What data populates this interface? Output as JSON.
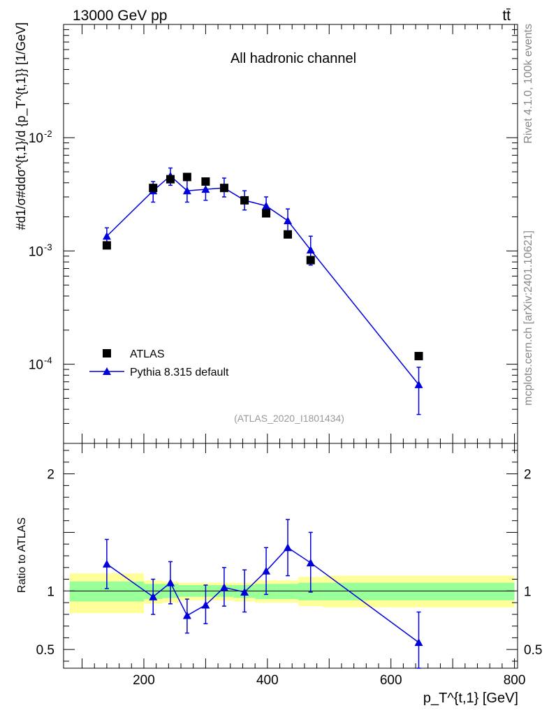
{
  "header": {
    "left": "13000 GeV pp",
    "right": "tt̄"
  },
  "side_labels": {
    "rivet": "Rivet 4.1.0,  100k events",
    "mcplots": "mcplots.cern.ch [arXiv:2401.10621]"
  },
  "colors": {
    "data": "#000000",
    "mc": "#0000dd",
    "band_inner": "#99ff99",
    "band_outer": "#ffff99",
    "watermark": "#999999",
    "side_label": "#888888"
  },
  "chart_data": [
    {
      "type": "scatter",
      "title": "All hadronic channel",
      "analysis_tag": "(ATLAS_2020_I1801434)",
      "ylabel": "#d1/σ#ddσ^{t,1}/d {p_T^{t,1}} [1/GeV]",
      "yscale": "log",
      "xlim": [
        70,
        805
      ],
      "ylim": [
        2e-05,
        0.1
      ],
      "y_ticks": [
        {
          "value": 0.01,
          "label": "10^-2"
        },
        {
          "value": 0.001,
          "label": "10^-3"
        },
        {
          "value": 0.0001,
          "label": "10^-4"
        }
      ],
      "legend": {
        "position": "bottom-left",
        "entries": [
          "ATLAS",
          "Pythia 8.315 default"
        ]
      },
      "series": [
        {
          "name": "ATLAS",
          "marker": "square",
          "x": [
            140,
            215,
            243,
            270,
            300,
            330,
            363,
            398,
            433,
            470,
            645
          ],
          "y": [
            0.00112,
            0.0036,
            0.0043,
            0.0045,
            0.0041,
            0.0036,
            0.0028,
            0.00215,
            0.0014,
            0.00083,
            0.000118
          ]
        },
        {
          "name": "Pythia 8.315 default",
          "marker": "triangle",
          "x": [
            140,
            215,
            243,
            270,
            300,
            330,
            363,
            398,
            433,
            470,
            645
          ],
          "y": [
            0.00135,
            0.0034,
            0.0046,
            0.0034,
            0.0035,
            0.0036,
            0.0028,
            0.0025,
            0.00185,
            0.00102,
            6.6e-05
          ],
          "y_low": [
            0.00115,
            0.0027,
            0.0038,
            0.0027,
            0.0028,
            0.003,
            0.0023,
            0.002,
            0.00145,
            0.00075,
            3.6e-05
          ],
          "y_high": [
            0.0016,
            0.0041,
            0.0054,
            0.0042,
            0.0043,
            0.0044,
            0.0034,
            0.003,
            0.00235,
            0.00135,
            9.4e-05
          ]
        }
      ]
    },
    {
      "type": "line",
      "ylabel": "Ratio to ATLAS",
      "xlabel": "p_T^{t,1} [GeV]",
      "xlim": [
        70,
        805
      ],
      "ylim": [
        0.34,
        2.26
      ],
      "x_ticks": [
        200,
        400,
        600,
        800
      ],
      "y_ticks": [
        0.5,
        1,
        2
      ],
      "reference_line": 1,
      "uncertainty_bands": [
        {
          "x_low": 80,
          "x_high": 200,
          "inner": [
            0.91,
            1.08
          ],
          "outer": [
            0.81,
            1.15
          ]
        },
        {
          "x_low": 200,
          "x_high": 230,
          "inner": [
            0.93,
            1.06
          ],
          "outer": [
            0.89,
            1.09
          ]
        },
        {
          "x_low": 230,
          "x_high": 256,
          "inner": [
            0.94,
            1.06
          ],
          "outer": [
            0.9,
            1.08
          ]
        },
        {
          "x_low": 256,
          "x_high": 285,
          "inner": [
            0.95,
            1.05
          ],
          "outer": [
            0.92,
            1.07
          ]
        },
        {
          "x_low": 285,
          "x_high": 315,
          "inner": [
            0.95,
            1.05
          ],
          "outer": [
            0.92,
            1.07
          ]
        },
        {
          "x_low": 315,
          "x_high": 345,
          "inner": [
            0.95,
            1.05
          ],
          "outer": [
            0.92,
            1.07
          ]
        },
        {
          "x_low": 345,
          "x_high": 380,
          "inner": [
            0.94,
            1.05
          ],
          "outer": [
            0.91,
            1.07
          ]
        },
        {
          "x_low": 380,
          "x_high": 415,
          "inner": [
            0.93,
            1.06
          ],
          "outer": [
            0.9,
            1.09
          ]
        },
        {
          "x_low": 415,
          "x_high": 450,
          "inner": [
            0.93,
            1.06
          ],
          "outer": [
            0.9,
            1.09
          ]
        },
        {
          "x_low": 450,
          "x_high": 490,
          "inner": [
            0.92,
            1.07
          ],
          "outer": [
            0.87,
            1.12
          ]
        },
        {
          "x_low": 490,
          "x_high": 800,
          "inner": [
            0.92,
            1.07
          ],
          "outer": [
            0.86,
            1.13
          ]
        }
      ],
      "series": [
        {
          "name": "Pythia 8.315 default",
          "x": [
            140,
            215,
            243,
            270,
            300,
            330,
            363,
            398,
            433,
            470,
            645
          ],
          "y": [
            1.23,
            0.95,
            1.07,
            0.79,
            0.88,
            1.03,
            0.99,
            1.17,
            1.37,
            1.24,
            0.56
          ],
          "y_low": [
            1.02,
            0.8,
            0.89,
            0.64,
            0.72,
            0.87,
            0.82,
            0.97,
            1.13,
            0.99,
            0.3
          ],
          "y_high": [
            1.44,
            1.1,
            1.25,
            0.93,
            1.05,
            1.2,
            1.18,
            1.37,
            1.61,
            1.5,
            0.82
          ]
        }
      ]
    }
  ]
}
